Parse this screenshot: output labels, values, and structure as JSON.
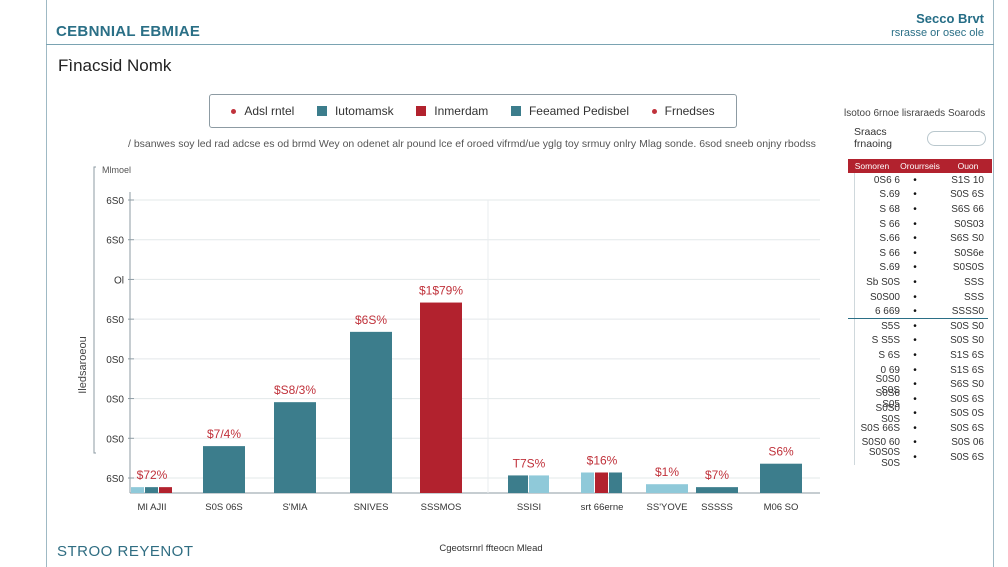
{
  "header": {
    "brand": "CEBNNIAL EBMIAE",
    "right_line1": "Secco Brvt",
    "right_line2": "rsrasse or osec ole"
  },
  "page_title": "Fìnacsid Nomk",
  "legend": [
    {
      "label": "Adsl rntel",
      "color": "#c0323b",
      "shape": "dot"
    },
    {
      "label": "Iutomamsk",
      "color": "#3c7d8c",
      "shape": "square"
    },
    {
      "label": "Inmerdam",
      "color": "#b2222e",
      "shape": "square"
    },
    {
      "label": "Feeamed Pedisbel",
      "color": "#3c7d8c",
      "shape": "square"
    },
    {
      "label": "Frnedses",
      "color": "#c0323b",
      "shape": "dot"
    }
  ],
  "caption": "/ bsanwes soy led rad adcse es od brmd Wey on odenet alr pound lce ef oroed vifrmd/ue yglg toy srmuy onlry Mlag sonde. 6sod sneeb onjny rbodss",
  "colors": {
    "teal": "#3c7d8c",
    "red": "#b2222e",
    "light_blue": "#8fc9d9",
    "axis": "#8d9ba3",
    "label_red": "#c0323b"
  },
  "chart_data": {
    "type": "bar",
    "ylabel": "Iledsaroeou",
    "y_top_label": "Mlmoel",
    "xlabel": "Cgeotsrnrl ffteocn Mlead",
    "ylim": [
      0,
      100
    ],
    "y_ticks": [
      "6S0",
      "6S0",
      "Ol",
      "6S0",
      "0S0",
      "0S0",
      "0S0",
      "6S0"
    ],
    "bars": [
      {
        "category": "MI AJII",
        "value": 2,
        "label": "$72%",
        "color": "red",
        "stack": [
          {
            "color": "light_blue",
            "value": 2
          },
          {
            "color": "teal",
            "value": 2
          }
        ]
      },
      {
        "category": "S0S 06S",
        "value": 16,
        "label": "$7/4%"
      },
      {
        "category": "S'MIA",
        "value": 31,
        "label": "$S8/3%"
      },
      {
        "category": "SNIVES",
        "value": 55,
        "label": "$6S%"
      },
      {
        "category": "SSSMOS",
        "value": 65,
        "label": "$1$79%",
        "color": "red"
      },
      {
        "category": "SSISI",
        "value": 6,
        "label": "T7S%",
        "color": "light_blue",
        "stack": [
          {
            "color": "teal",
            "value": 6
          }
        ]
      },
      {
        "category": "srt 66erne",
        "value": 7,
        "label": "$16%",
        "stack": [
          {
            "color": "light_blue",
            "value": 7
          },
          {
            "color": "red",
            "value": 7
          }
        ]
      },
      {
        "category": "SS'YOVE",
        "value": 3,
        "label": "$1%",
        "color": "light_blue"
      },
      {
        "category": "SSSSS",
        "value": 2,
        "label": "$7%"
      },
      {
        "category": "M06 SO",
        "value": 10,
        "label": "S6%"
      }
    ]
  },
  "side_panel": {
    "heading": "lsotoo 6rnoe lisraraeds Soarods",
    "sub_label": "Sraacs frnaoing",
    "header_cols": [
      "Somoren",
      "Orourrseis",
      "Ouon"
    ],
    "rows": [
      {
        "left": "0S6 6",
        "right": "S1S 10"
      },
      {
        "left": "S.69",
        "right": "S0S 6S"
      },
      {
        "left": "S 68",
        "right": "S6S 66"
      },
      {
        "left": "S 66",
        "right": "S0S03"
      },
      {
        "left": "S.66",
        "right": "S6S S0"
      },
      {
        "left": "S 66",
        "right": "S0S6e"
      },
      {
        "left": "S.69",
        "right": "S0S0S"
      },
      {
        "left": "Sb S0S",
        "right": "SSS"
      },
      {
        "left": "S0S00",
        "right": "SSS"
      },
      {
        "left": "6 669",
        "right": "SSSS0"
      },
      {
        "left": "S5S",
        "right": "S0S S0"
      },
      {
        "left": "S S5S",
        "right": "S0S S0"
      },
      {
        "left": "S 6S",
        "right": "S1S 6S"
      },
      {
        "left": "0 69",
        "right": "S1S 6S"
      },
      {
        "left": "S0S0 S0S",
        "right": "S6S S0"
      },
      {
        "left": "S0S6 S05",
        "right": "S0S 6S"
      },
      {
        "left": "S0S0 S0S",
        "right": "S0S 0S"
      },
      {
        "left": "S0S 66S",
        "right": "S0S 6S"
      },
      {
        "left": "S0S0 60",
        "right": "S0S 06"
      },
      {
        "left": "S0S0S S0S",
        "right": "S0S 6S"
      }
    ]
  },
  "footer": {
    "brand": "STROO REYENOT"
  }
}
